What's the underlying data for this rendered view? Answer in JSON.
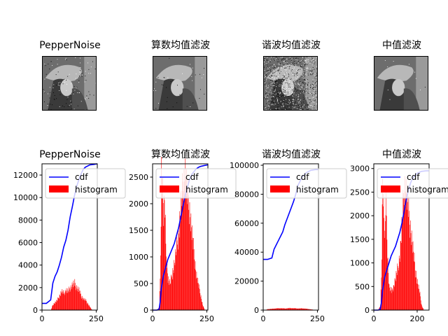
{
  "window": {
    "size": "640x480"
  },
  "images": [
    {
      "title": "PepperNoise",
      "noise": "salt-pepper"
    },
    {
      "title": "算数均值滤波",
      "noise": "smooth"
    },
    {
      "title": "谐波均值滤波",
      "noise": "heavy"
    },
    {
      "title": "中值滤波",
      "noise": "clean"
    }
  ],
  "chart_data": [
    {
      "type": "bar",
      "title": "PepperNoise",
      "xlim": [
        0,
        255
      ],
      "ylim": [
        0,
        13000
      ],
      "xticks": [
        0,
        250
      ],
      "yticks": [
        0,
        2000,
        4000,
        6000,
        8000,
        10000,
        12000
      ],
      "legend": {
        "placement": "upper-left",
        "entries": [
          "cdf",
          "histogram"
        ]
      },
      "colors": {
        "cdf": "#0000ff",
        "histogram": "#ff0000"
      },
      "histogram": {
        "x": [
          0,
          20,
          40,
          50,
          60,
          70,
          80,
          90,
          100,
          110,
          120,
          130,
          140,
          150,
          160,
          170,
          180,
          190,
          200,
          210,
          220,
          230,
          255
        ],
        "y": [
          0,
          0,
          0,
          500,
          700,
          900,
          1300,
          1700,
          1500,
          1800,
          1700,
          2000,
          2300,
          2400,
          2000,
          1800,
          1300,
          1000,
          900,
          600,
          300,
          0,
          0
        ]
      },
      "cdf": {
        "x": [
          0,
          20,
          40,
          50,
          60,
          70,
          80,
          90,
          100,
          110,
          120,
          130,
          140,
          150,
          160,
          170,
          180,
          190,
          200,
          220,
          240,
          255
        ],
        "y": [
          600,
          600,
          900,
          2400,
          3000,
          3400,
          4000,
          4700,
          5600,
          6200,
          7100,
          8300,
          9200,
          10200,
          11000,
          11600,
          12100,
          12500,
          12700,
          12900,
          12950,
          13000
        ]
      }
    },
    {
      "type": "bar",
      "title": "算数均值滤波",
      "xlim": [
        0,
        255
      ],
      "ylim": [
        0,
        2750
      ],
      "xticks": [
        0,
        250
      ],
      "yticks": [
        0,
        500,
        1000,
        1500,
        2000,
        2500
      ],
      "legend": {
        "placement": "upper-left",
        "entries": [
          "cdf",
          "histogram"
        ]
      },
      "colors": {
        "cdf": "#0000ff",
        "histogram": "#ff0000"
      },
      "histogram": {
        "x": [
          0,
          20,
          30,
          35,
          40,
          45,
          50,
          55,
          60,
          70,
          80,
          90,
          100,
          110,
          120,
          130,
          140,
          150,
          160,
          170,
          180,
          190,
          200,
          210,
          220,
          230,
          240,
          255
        ],
        "y": [
          0,
          0,
          50,
          700,
          2700,
          2400,
          1800,
          2100,
          1200,
          600,
          500,
          700,
          900,
          1200,
          1500,
          2000,
          2400,
          2600,
          2200,
          1900,
          1500,
          1100,
          700,
          500,
          300,
          100,
          0,
          0
        ]
      },
      "cdf": {
        "x": [
          0,
          20,
          30,
          35,
          40,
          50,
          60,
          70,
          80,
          90,
          100,
          110,
          120,
          130,
          140,
          150,
          160,
          170,
          180,
          190,
          200,
          210,
          220,
          240,
          255
        ],
        "y": [
          0,
          0,
          20,
          150,
          400,
          650,
          800,
          950,
          1050,
          1150,
          1250,
          1400,
          1550,
          1750,
          1950,
          2150,
          2300,
          2450,
          2550,
          2600,
          2650,
          2680,
          2700,
          2720,
          2730
        ]
      }
    },
    {
      "type": "bar",
      "title": "谐波均值滤波",
      "xlim": [
        0,
        255
      ],
      "ylim": [
        0,
        101000
      ],
      "xticks": [
        0,
        250
      ],
      "yticks": [
        0,
        20000,
        40000,
        60000,
        80000,
        100000
      ],
      "legend": {
        "placement": "upper-left",
        "entries": [
          "cdf",
          "histogram"
        ]
      },
      "colors": {
        "cdf": "#0000ff",
        "histogram": "#ff0000"
      },
      "histogram": {
        "x": [
          0,
          10,
          20,
          40,
          60,
          80,
          100,
          120,
          140,
          160,
          180,
          200,
          220,
          240,
          255
        ],
        "y": [
          0,
          0,
          700,
          900,
          1200,
          1300,
          1100,
          1400,
          1300,
          1100,
          1200,
          900,
          500,
          0,
          0
        ]
      },
      "cdf": {
        "x": [
          0,
          20,
          40,
          50,
          60,
          70,
          80,
          90,
          100,
          110,
          120,
          130,
          140,
          150,
          160,
          180,
          200,
          220,
          240,
          255
        ],
        "y": [
          35000,
          35000,
          36000,
          42000,
          45000,
          48000,
          51000,
          54000,
          59000,
          63000,
          67000,
          71000,
          75000,
          80000,
          86000,
          92000,
          95000,
          96500,
          97000,
          97000
        ]
      }
    },
    {
      "type": "bar",
      "title": "中值滤波",
      "xlim": [
        0,
        255
      ],
      "ylim": [
        0,
        3100
      ],
      "xticks": [
        0,
        200
      ],
      "yticks": [
        0,
        500,
        1000,
        1500,
        2000,
        2500,
        3000
      ],
      "legend": {
        "placement": "upper-left",
        "entries": [
          "cdf",
          "histogram"
        ]
      },
      "colors": {
        "cdf": "#0000ff",
        "histogram": "#ff0000"
      },
      "histogram": {
        "x": [
          0,
          20,
          30,
          35,
          40,
          45,
          50,
          55,
          60,
          65,
          70,
          80,
          90,
          100,
          110,
          120,
          130,
          140,
          150,
          160,
          170,
          180,
          190,
          200,
          210,
          220,
          230,
          255
        ],
        "y": [
          0,
          0,
          100,
          900,
          2900,
          2100,
          1500,
          2400,
          1600,
          900,
          500,
          400,
          500,
          700,
          900,
          1200,
          1900,
          2700,
          2500,
          2100,
          1700,
          1300,
          900,
          600,
          400,
          100,
          0,
          0
        ]
      },
      "cdf": {
        "x": [
          0,
          20,
          30,
          35,
          40,
          50,
          60,
          70,
          80,
          90,
          100,
          110,
          120,
          130,
          140,
          150,
          160,
          170,
          180,
          190,
          200,
          210,
          220,
          240,
          255
        ],
        "y": [
          0,
          0,
          20,
          150,
          400,
          700,
          850,
          1000,
          1150,
          1250,
          1350,
          1500,
          1650,
          1850,
          2100,
          2350,
          2550,
          2700,
          2800,
          2850,
          2900,
          2920,
          2940,
          2950,
          2950
        ]
      }
    }
  ]
}
